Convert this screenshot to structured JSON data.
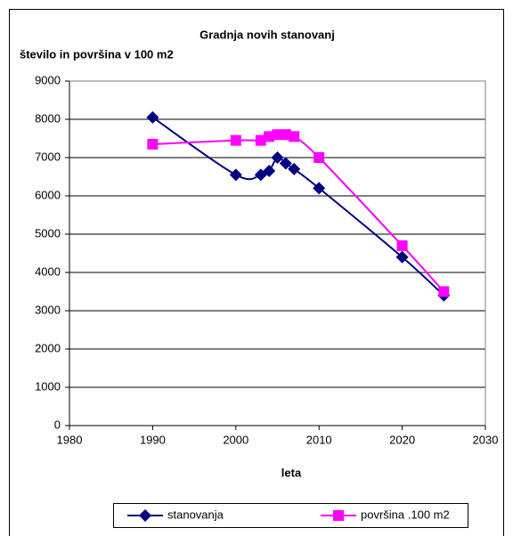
{
  "chart_data": {
    "type": "line",
    "title": "Gradnja novih stanovanj",
    "y_label": "število in površina v 100 m2",
    "x_label": "leta",
    "x": [
      1990,
      2000,
      2003,
      2004,
      2005,
      2006,
      2007,
      2010,
      2020,
      2025
    ],
    "series": [
      {
        "name": "stanovanja",
        "color": "#000080",
        "marker": "diamond",
        "values": [
          8050,
          6550,
          6550,
          6650,
          7000,
          6850,
          6700,
          6200,
          4400,
          3400
        ]
      },
      {
        "name": "površina .100 m2",
        "color": "#ff00ff",
        "marker": "square",
        "values": [
          7350,
          7450,
          7450,
          7550,
          7600,
          7600,
          7550,
          7000,
          4700,
          3500
        ]
      }
    ],
    "xlim": [
      1980,
      2030
    ],
    "xticks": [
      1980,
      1990,
      2000,
      2010,
      2020,
      2030
    ],
    "ylim": [
      0,
      9000
    ],
    "yticks": [
      0,
      1000,
      2000,
      3000,
      4000,
      5000,
      6000,
      7000,
      8000,
      9000
    ],
    "grid": true,
    "smooth": true,
    "legend": "bottom"
  }
}
